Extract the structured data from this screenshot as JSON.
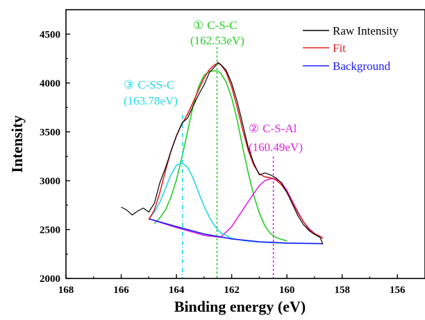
{
  "chart_data": {
    "type": "line",
    "xlabel": "Binding energy (eV)",
    "ylabel": "Intensity",
    "xlim": [
      168,
      155
    ],
    "ylim": [
      2000,
      4750
    ],
    "x_reversed": true,
    "x_ticks": [
      168,
      166,
      164,
      162,
      160,
      158,
      156
    ],
    "y_ticks": [
      2000,
      2500,
      3000,
      3500,
      4000,
      4500
    ],
    "legend_position": "top-right",
    "grid": false,
    "legend": [
      {
        "label": "Raw Intensity",
        "color": "#000000"
      },
      {
        "label": "Fit",
        "color": "#e02020"
      },
      {
        "label": "Background",
        "color": "#1a1aff"
      }
    ],
    "series": [
      {
        "name": "Raw Intensity",
        "color": "#000000",
        "x": [
          166.0,
          165.8,
          165.6,
          165.4,
          165.2,
          165.0,
          164.8,
          164.6,
          164.4,
          164.2,
          164.0,
          163.8,
          163.6,
          163.4,
          163.2,
          163.0,
          162.8,
          162.6,
          162.5,
          162.4,
          162.2,
          162.0,
          161.8,
          161.6,
          161.4,
          161.2,
          161.0,
          160.8,
          160.6,
          160.4,
          160.2,
          160.0,
          159.8,
          159.6,
          159.4,
          159.2,
          159.0,
          158.8,
          158.7
        ],
        "y": [
          2730,
          2700,
          2650,
          2690,
          2720,
          2680,
          2770,
          2980,
          3130,
          3300,
          3460,
          3590,
          3640,
          3760,
          3880,
          3980,
          4110,
          4170,
          4210,
          4190,
          4130,
          4000,
          3810,
          3580,
          3340,
          3180,
          3060,
          3080,
          3060,
          3030,
          2980,
          2880,
          2760,
          2640,
          2550,
          2490,
          2450,
          2420,
          2350
        ]
      },
      {
        "name": "Fit",
        "color": "#e02020",
        "x": [
          165.0,
          164.8,
          164.6,
          164.4,
          164.2,
          164.0,
          163.8,
          163.6,
          163.4,
          163.2,
          163.0,
          162.8,
          162.6,
          162.5,
          162.4,
          162.2,
          162.0,
          161.8,
          161.6,
          161.4,
          161.2,
          161.0,
          160.8,
          160.6,
          160.4,
          160.2,
          160.0,
          159.8,
          159.6,
          159.4,
          159.2,
          159.0,
          158.8,
          158.7
        ],
        "y": [
          2600,
          2700,
          2880,
          3100,
          3300,
          3460,
          3580,
          3680,
          3800,
          3930,
          4050,
          4140,
          4190,
          4200,
          4190,
          4110,
          3960,
          3750,
          3520,
          3310,
          3160,
          3070,
          3040,
          3030,
          3010,
          2960,
          2880,
          2780,
          2670,
          2580,
          2500,
          2460,
          2430,
          2410
        ]
      },
      {
        "name": "Background",
        "color": "#1a1aff",
        "x": [
          165.0,
          164.0,
          163.0,
          162.0,
          161.0,
          160.0,
          159.0,
          158.7
        ],
        "y": [
          2610,
          2530,
          2455,
          2405,
          2375,
          2362,
          2357,
          2356
        ]
      }
    ],
    "components": [
      {
        "label": "① C-S-C",
        "position_label": "(162.53eV)",
        "center": 162.53,
        "color": "#22cc22",
        "x": [
          164.8,
          164.6,
          164.4,
          164.2,
          164.0,
          163.8,
          163.6,
          163.4,
          163.2,
          163.0,
          162.8,
          162.6,
          162.5,
          162.4,
          162.2,
          162.0,
          161.8,
          161.6,
          161.4,
          161.2,
          161.0,
          160.8,
          160.6,
          160.4,
          160.2,
          160.0
        ],
        "y": [
          2560,
          2620,
          2700,
          2830,
          3010,
          3240,
          3500,
          3760,
          3960,
          4080,
          4120,
          4125,
          4120,
          4100,
          4010,
          3850,
          3620,
          3340,
          3080,
          2850,
          2670,
          2540,
          2460,
          2420,
          2400,
          2385
        ]
      },
      {
        "label": "② C-S-Al",
        "position_label": "(160.49eV)",
        "center": 160.49,
        "color": "#e020e0",
        "x": [
          165.0,
          164.0,
          163.0,
          162.4,
          162.0,
          161.6,
          161.2,
          161.0,
          160.8,
          160.6,
          160.4,
          160.2,
          160.0,
          159.8,
          159.6,
          159.4,
          159.2,
          159.0,
          158.8,
          158.7
        ],
        "y": [
          2610,
          2520,
          2440,
          2420,
          2530,
          2700,
          2870,
          2950,
          3000,
          3020,
          3020,
          2980,
          2900,
          2790,
          2680,
          2580,
          2510,
          2460,
          2430,
          2415
        ]
      },
      {
        "label": "③ C-SS-C",
        "position_label": "(163.78eV)",
        "center": 163.78,
        "color": "#22d8e8",
        "x": [
          165.0,
          164.8,
          164.6,
          164.4,
          164.2,
          164.0,
          163.8,
          163.6,
          163.4,
          163.2,
          163.0,
          162.8,
          162.6,
          162.4,
          162.0,
          161.5,
          161.0,
          160.5,
          160.0,
          159.5,
          159.0,
          158.8
        ],
        "y": [
          2610,
          2680,
          2780,
          2920,
          3060,
          3160,
          3180,
          3140,
          3030,
          2880,
          2740,
          2620,
          2530,
          2470,
          2410,
          2385,
          2372,
          2365,
          2360,
          2358,
          2357,
          2356
        ]
      }
    ],
    "annotations": [
      {
        "id": "csc",
        "symbol": "①",
        "text": "C-S-C",
        "value": "(162.53eV)",
        "color": "#22cc22"
      },
      {
        "id": "csal",
        "symbol": "②",
        "text": "C-S-Al",
        "value": "(160.49eV)",
        "color": "#e020e0"
      },
      {
        "id": "cssc",
        "symbol": "③",
        "text": "C-SS-C",
        "value": "(163.78eV)",
        "color": "#22d8e8"
      }
    ]
  }
}
